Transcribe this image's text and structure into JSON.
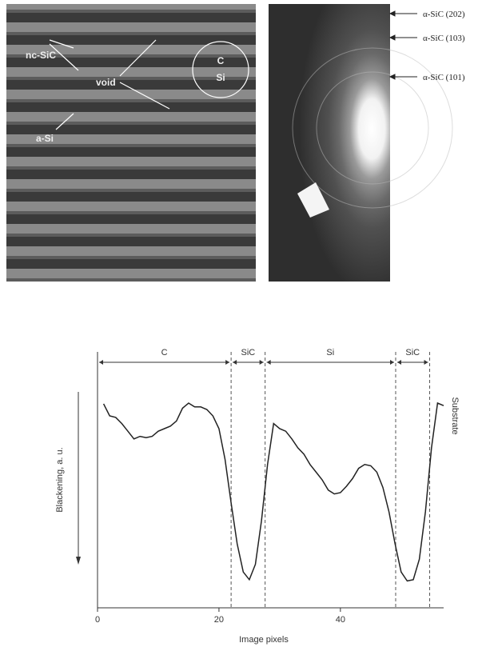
{
  "micrograph": {
    "labels": [
      "nc-SiC",
      "void",
      "a-Si"
    ],
    "circle_labels": [
      "C",
      "Si"
    ]
  },
  "diffraction": {
    "rings": [
      "α-SiC (202)",
      "α-SiC (103)",
      "α-SiC (101)"
    ]
  },
  "chart_data": {
    "type": "line",
    "x_label": "Image pixels",
    "y_label": "Blackening, a. u.",
    "side_label": "Substrate",
    "x": [
      1,
      2,
      3,
      4,
      5,
      6,
      7,
      8,
      9,
      10,
      11,
      12,
      13,
      14,
      15,
      16,
      17,
      18,
      19,
      20,
      21,
      22,
      23,
      24,
      25,
      26,
      27,
      28,
      29,
      30,
      31,
      32,
      33,
      34,
      35,
      36,
      37,
      38,
      39,
      40,
      41,
      42,
      43,
      44,
      45,
      46,
      47,
      48,
      49,
      50,
      51,
      52,
      53,
      54,
      55,
      56,
      57
    ],
    "series": [
      {
        "color": "#222222",
        "values": [
          7.97,
          7.5,
          7.44,
          7.2,
          6.9,
          6.6,
          6.7,
          6.65,
          6.7,
          6.9,
          7.0,
          7.1,
          7.3,
          7.8,
          8.0,
          7.85,
          7.85,
          7.75,
          7.5,
          7.0,
          5.8,
          4.1,
          2.5,
          1.4,
          1.1,
          1.7,
          3.4,
          5.6,
          7.2,
          7.0,
          6.9,
          6.6,
          6.25,
          6.0,
          5.6,
          5.3,
          5.0,
          4.6,
          4.45,
          4.5,
          4.75,
          5.05,
          5.45,
          5.6,
          5.55,
          5.3,
          4.7,
          3.75,
          2.5,
          1.4,
          1.05,
          1.1,
          1.9,
          3.75,
          6.25,
          8.0,
          7.9
        ]
      }
    ],
    "regions": [
      "C",
      "SiC",
      "Si",
      "SiC"
    ],
    "boundaries": [
      0,
      22,
      27.6,
      49.1,
      54.7
    ],
    "xlim": [
      0,
      57
    ],
    "ylim": [
      0,
      10
    ],
    "xticks": [
      0,
      20,
      40
    ]
  }
}
